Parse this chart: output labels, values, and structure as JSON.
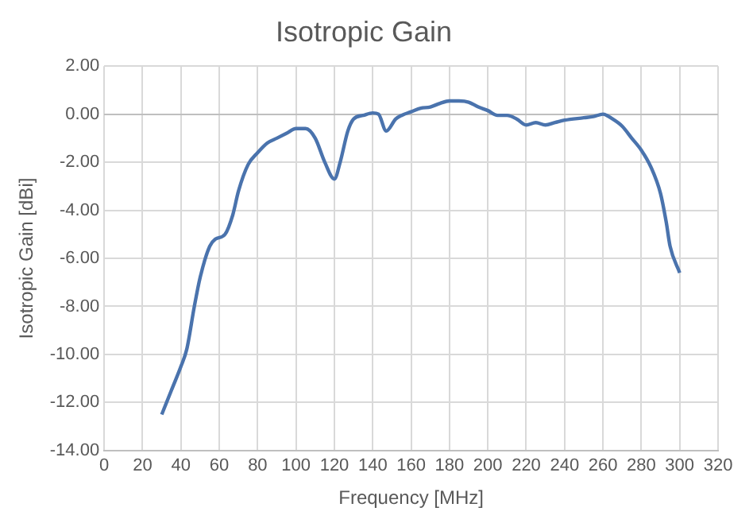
{
  "chart_data": {
    "type": "line",
    "title": "Isotropic Gain",
    "xlabel": "Frequency [MHz]",
    "ylabel": "Isotropic Gain [dBi]",
    "x": [
      30,
      35,
      40,
      43,
      47,
      50,
      55,
      58,
      63,
      67,
      70,
      75,
      80,
      85,
      90,
      95,
      100,
      105,
      110,
      115,
      120,
      123,
      127,
      130,
      135,
      140,
      143,
      147,
      152,
      155,
      160,
      165,
      170,
      175,
      180,
      185,
      190,
      195,
      200,
      205,
      210,
      215,
      220,
      225,
      230,
      235,
      240,
      250,
      255,
      260,
      265,
      270,
      275,
      280,
      285,
      290,
      293,
      295,
      300
    ],
    "series": [
      {
        "color": "#4a73ad",
        "values": [
          -12.5,
          -11.5,
          -10.5,
          -9.8,
          -8.0,
          -6.8,
          -5.5,
          -5.2,
          -5.0,
          -4.2,
          -3.2,
          -2.1,
          -1.6,
          -1.2,
          -1.0,
          -0.8,
          -0.6,
          -0.6,
          -1.0,
          -2.0,
          -2.7,
          -2.0,
          -0.7,
          -0.2,
          -0.05,
          0.05,
          0.0,
          -0.7,
          -0.2,
          -0.05,
          0.1,
          0.25,
          0.3,
          0.45,
          0.55,
          0.55,
          0.5,
          0.3,
          0.15,
          -0.05,
          -0.05,
          -0.2,
          -0.45,
          -0.35,
          -0.45,
          -0.35,
          -0.25,
          -0.15,
          -0.1,
          0.0,
          -0.2,
          -0.5,
          -1.0,
          -1.5,
          -2.2,
          -3.3,
          -4.5,
          -5.5,
          -6.6
        ]
      }
    ],
    "xlim": [
      0,
      320
    ],
    "xticks": [
      0,
      20,
      40,
      60,
      80,
      100,
      120,
      140,
      160,
      180,
      200,
      220,
      240,
      260,
      280,
      300,
      320
    ],
    "ylim": [
      -14,
      2
    ],
    "yticks": [
      {
        "value": -14,
        "label": "-14.00"
      },
      {
        "value": -12,
        "label": "-12.00"
      },
      {
        "value": -10,
        "label": "-10.00"
      },
      {
        "value": -8,
        "label": "-8.00"
      },
      {
        "value": -6,
        "label": "-6.00"
      },
      {
        "value": -4,
        "label": "-4.00"
      },
      {
        "value": -2,
        "label": "-2.00"
      },
      {
        "value": 0,
        "label": "0.00"
      },
      {
        "value": 2,
        "label": "2.00"
      }
    ],
    "grid": true,
    "legend": false,
    "marker": "none",
    "line_style": "solid"
  }
}
